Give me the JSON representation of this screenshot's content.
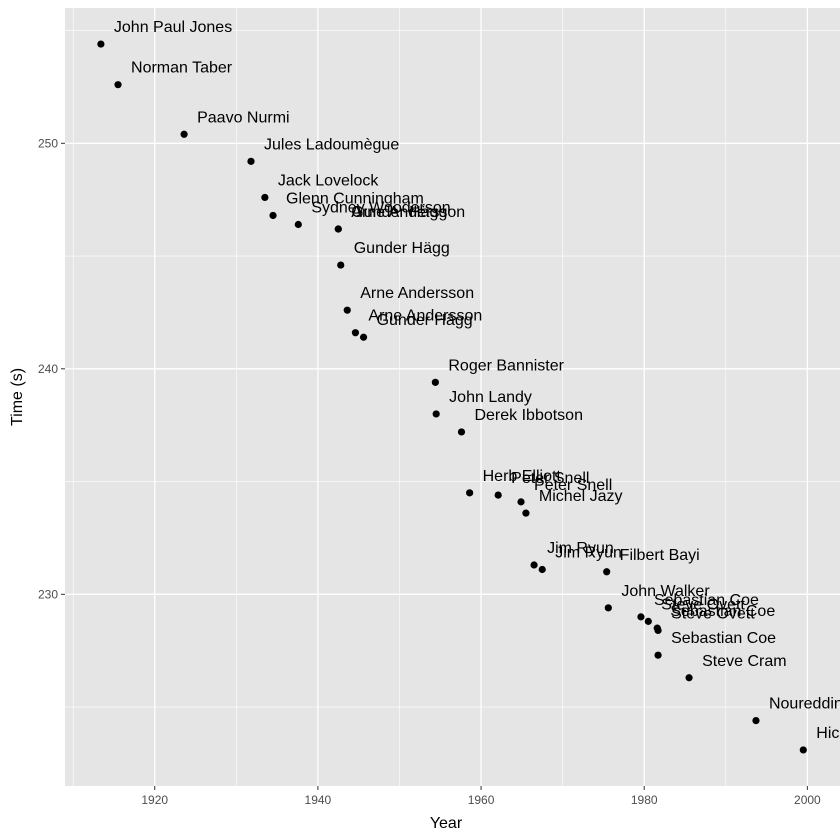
{
  "chart_data": {
    "type": "scatter",
    "title": "",
    "xlabel": "Year",
    "ylabel": "Time (s)",
    "xlim": [
      1909,
      2004
    ],
    "ylim": [
      221.5,
      256
    ],
    "x_ticks": [
      1920,
      1940,
      1960,
      1980,
      2000
    ],
    "y_ticks": [
      230,
      240,
      250
    ],
    "grid": true,
    "background": "#e5e5e5",
    "grid_color": "#ffffff",
    "point_color": "#000000",
    "points": [
      {
        "x": 1913.4,
        "y": 254.4,
        "label": "John Paul Jones"
      },
      {
        "x": 1915.5,
        "y": 252.6,
        "label": "Norman Taber"
      },
      {
        "x": 1923.6,
        "y": 250.4,
        "label": "Paavo Nurmi"
      },
      {
        "x": 1931.8,
        "y": 249.2,
        "label": "Jules Ladoumègue"
      },
      {
        "x": 1933.5,
        "y": 247.6,
        "label": "Jack Lovelock"
      },
      {
        "x": 1934.5,
        "y": 246.8,
        "label": "Glenn Cunningham"
      },
      {
        "x": 1937.6,
        "y": 246.4,
        "label": "Sydney Wooderson"
      },
      {
        "x": 1942.5,
        "y": 246.2,
        "label": "Gunder Hägg"
      },
      {
        "x": 1942.5,
        "y": 246.2,
        "label": "Arne Andersson"
      },
      {
        "x": 1942.8,
        "y": 244.6,
        "label": "Gunder Hägg"
      },
      {
        "x": 1943.6,
        "y": 242.6,
        "label": "Arne Andersson"
      },
      {
        "x": 1944.6,
        "y": 241.6,
        "label": "Arne Andersson"
      },
      {
        "x": 1945.6,
        "y": 241.4,
        "label": "Gunder Hägg"
      },
      {
        "x": 1954.4,
        "y": 239.4,
        "label": "Roger Bannister"
      },
      {
        "x": 1954.5,
        "y": 238.0,
        "label": "John Landy"
      },
      {
        "x": 1957.6,
        "y": 237.2,
        "label": "Derek Ibbotson"
      },
      {
        "x": 1958.6,
        "y": 234.5,
        "label": "Herb Elliott"
      },
      {
        "x": 1962.1,
        "y": 234.4,
        "label": "Peter Snell"
      },
      {
        "x": 1964.9,
        "y": 234.1,
        "label": "Peter Snell"
      },
      {
        "x": 1965.5,
        "y": 233.6,
        "label": "Michel Jazy"
      },
      {
        "x": 1966.5,
        "y": 231.3,
        "label": "Jim Ryun"
      },
      {
        "x": 1967.5,
        "y": 231.1,
        "label": "Jim Ryun"
      },
      {
        "x": 1975.4,
        "y": 231.0,
        "label": "Filbert Bayi"
      },
      {
        "x": 1975.6,
        "y": 229.4,
        "label": "John Walker"
      },
      {
        "x": 1979.6,
        "y": 229.0,
        "label": "Sebastian Coe"
      },
      {
        "x": 1980.5,
        "y": 228.8,
        "label": "Steve Ovett"
      },
      {
        "x": 1981.6,
        "y": 228.5,
        "label": "Sebastian Coe"
      },
      {
        "x": 1981.7,
        "y": 228.4,
        "label": "Steve Ovett"
      },
      {
        "x": 1981.7,
        "y": 227.3,
        "label": "Sebastian Coe"
      },
      {
        "x": 1985.5,
        "y": 226.3,
        "label": "Steve Cram"
      },
      {
        "x": 1993.7,
        "y": 224.4,
        "label": "Noureddine Morceli"
      },
      {
        "x": 1999.5,
        "y": 223.1,
        "label": "Hicham El Guerrouj"
      }
    ]
  }
}
